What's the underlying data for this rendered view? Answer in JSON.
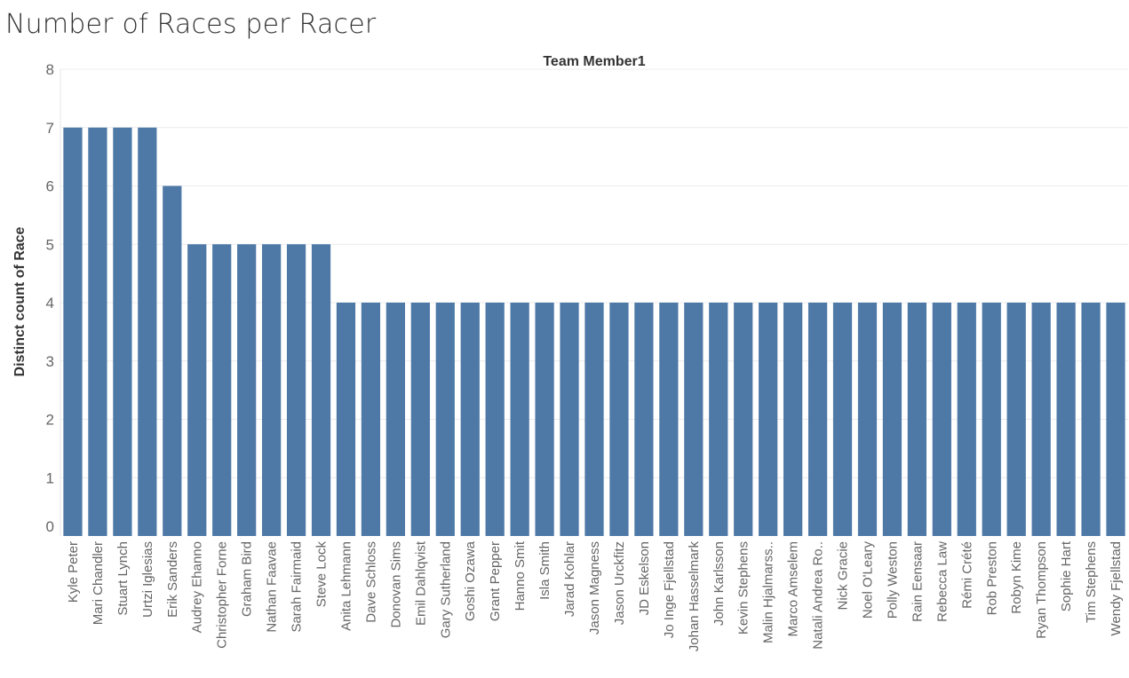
{
  "page": {
    "title": "Number of Races per Racer"
  },
  "chart_data": {
    "type": "bar",
    "title": "Number of Races per Racer",
    "column_header": "Team Member1",
    "xlabel": "",
    "ylabel": "Distinct count of Race",
    "ylim": [
      0,
      8
    ],
    "yticks": [
      0,
      1,
      2,
      3,
      4,
      5,
      6,
      7,
      8
    ],
    "grid": true,
    "bar_color": "#4e79a7",
    "categories": [
      "Kyle Peter",
      "Mari Chandler",
      "Stuart Lynch",
      "Urtzi Iglesias",
      "Erik Sanders",
      "Audrey Ehanno",
      "Christopher Forne",
      "Graham Bird",
      "Nathan Faavae",
      "Sarah Fairmaid",
      "Steve Lock",
      "Anita Lehmann",
      "Dave Schloss",
      "Donovan Sims",
      "Emil Dahlqvist",
      "Gary Sutherland",
      "Goshi Ozawa",
      "Grant Pepper",
      "Hanno Smit",
      "Isla Smith",
      "Jarad Kohlar",
      "Jason Magness",
      "Jason Urckfitz",
      "JD Eskelson",
      "Jo Inge Fjellstad",
      "Johan Hasselmark",
      "John Karlsson",
      "Kevin Stephens",
      "Malin Hjalmarss..",
      "Marco Amselem",
      "Natali Andrea Ro..",
      "Nick Gracie",
      "Noel O'Leary",
      "Polly Weston",
      "Rain Eensaar",
      "Rebecca Law",
      "Rémi Crété",
      "Rob Preston",
      "Robyn Kime",
      "Ryan Thompson",
      "Sophie Hart",
      "Tim Stephens",
      "Wendy Fjellstad"
    ],
    "values": [
      7,
      7,
      7,
      7,
      6,
      5,
      5,
      5,
      5,
      5,
      5,
      4,
      4,
      4,
      4,
      4,
      4,
      4,
      4,
      4,
      4,
      4,
      4,
      4,
      4,
      4,
      4,
      4,
      4,
      4,
      4,
      4,
      4,
      4,
      4,
      4,
      4,
      4,
      4,
      4,
      4,
      4,
      4
    ]
  }
}
